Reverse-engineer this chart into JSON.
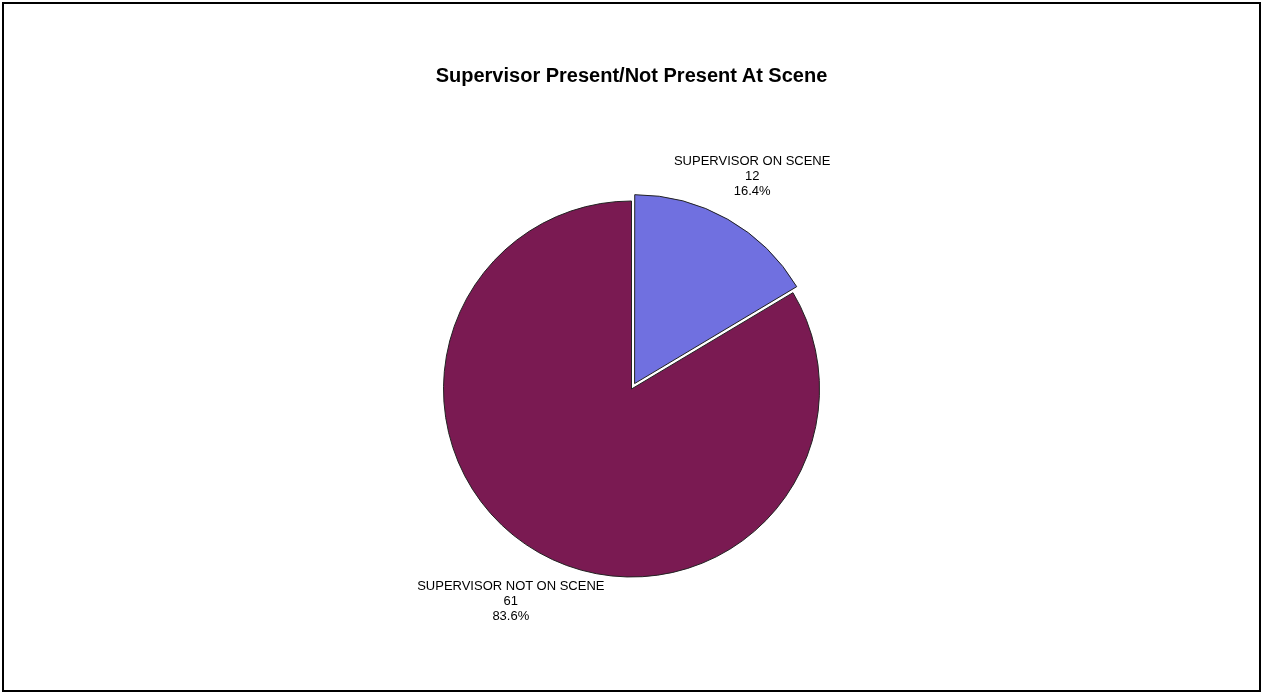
{
  "chart_data": {
    "type": "pie",
    "title": "Supervisor Present/Not Present At Scene",
    "categories": [
      "SUPERVISOR ON SCENE",
      "SUPERVISOR NOT ON SCENE"
    ],
    "values": [
      12,
      61
    ],
    "value_labels": [
      "12\n16.4%",
      "61\n83.6%"
    ],
    "colors": [
      "#7070e0",
      "#7a1a52"
    ],
    "legend": false
  }
}
